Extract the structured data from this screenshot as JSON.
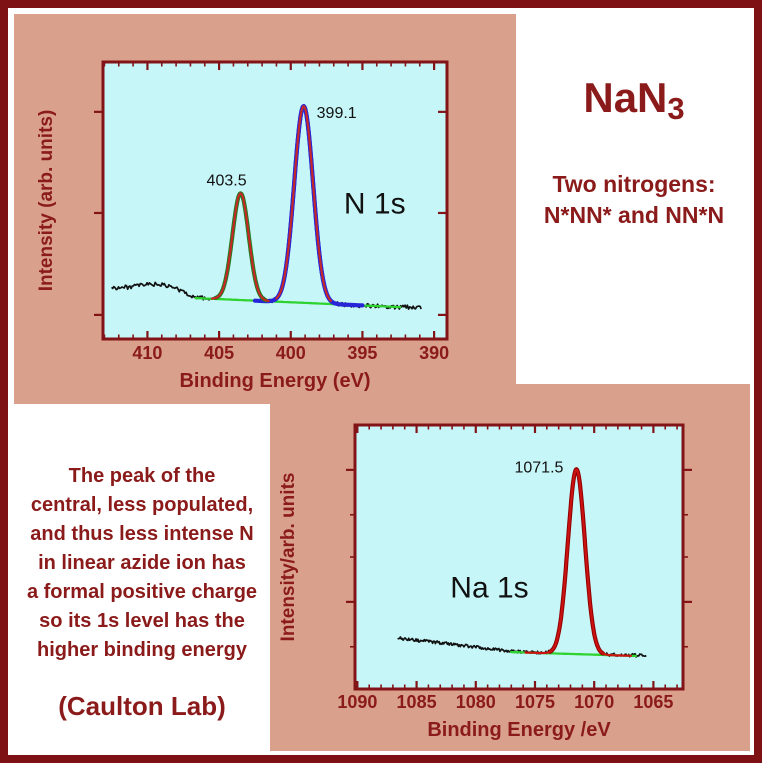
{
  "palette": {
    "frame_maroon": "#7d1114",
    "text_maroon": "#8b1a1a",
    "panel_salmon": "#d9a18c",
    "plot_cyan": "#c7f6f8",
    "axis_maroon": "#821418",
    "baseline_green": "#2fd32f",
    "data_black": "#111111"
  },
  "compound": {
    "title_main": "NaN",
    "title_sub": "3",
    "line1": "Two nitrogens:",
    "line2": "N*NN* and NN*N"
  },
  "explanation": {
    "lines": [
      "The peak of the",
      "central, less populated,",
      "and thus less intense N",
      "in linear azide ion has",
      "a formal positive charge",
      "so its 1s level has the",
      "higher binding energy"
    ],
    "credit": "(Caulton Lab)"
  },
  "chart_data": [
    {
      "id": "n1s",
      "type": "line",
      "annotation": "N 1s",
      "xlabel": "Binding Energy (eV)",
      "ylabel": "Intensity (arb. units)",
      "x_axis": {
        "max_left": 413.1,
        "min_right": 389.1,
        "reversed": true,
        "major_ticks": [
          410,
          405,
          400,
          395,
          390
        ],
        "minor_step": 1
      },
      "y_axis": {
        "label_only": true,
        "units": "arbitrary"
      },
      "peaks": [
        {
          "center": 403.5,
          "label": "403.5",
          "height_frac": 0.385,
          "sigma_ev": 0.57,
          "outline_color": "#1f7d1f",
          "fit_range": [
            405.5,
            401.55
          ]
        },
        {
          "center": 399.1,
          "label": "399.1",
          "height_frac": 0.71,
          "sigma_ev": 0.66,
          "outline_color": "#2626d8",
          "fit_range": [
            401.0,
            397.2
          ]
        }
      ],
      "fit_color": "#c62828",
      "envelope": {
        "color": "#2626d8",
        "from": 402.5,
        "to": 395.0,
        "peak_index": 1
      },
      "baseline": {
        "color": "#2fd32f",
        "from": 406.7,
        "to": 392.3,
        "level_start": 0.148,
        "level_end": 0.115
      },
      "data_trace": {
        "color": "#111111",
        "from": 412.5,
        "to": 390.9,
        "left_level": 0.185,
        "mode": "step",
        "step_center": 407.4,
        "step_width": 0.38,
        "hump": {
          "center": 409.6,
          "height": 0.013,
          "sigma": 0.95
        },
        "noise": 0.0075
      }
    },
    {
      "id": "na1s",
      "type": "line",
      "annotation": "Na 1s",
      "xlabel": "Binding Energy /eV",
      "ylabel": "Intensity/arb. units",
      "x_axis": {
        "max_left": 1090.2,
        "min_right": 1062.5,
        "reversed": true,
        "major_ticks": [
          1090,
          1085,
          1080,
          1075,
          1070,
          1065
        ],
        "minor_step": 1
      },
      "y_axis": {
        "label_only": true,
        "units": "arbitrary"
      },
      "peaks": [
        {
          "center": 1071.5,
          "label": "1071.5",
          "height_frac": 0.7,
          "sigma_ev": 0.72,
          "outline_color": "#8f0000",
          "fit_range": [
            1075.8,
            1066.9
          ]
        }
      ],
      "fit_color": "#cc1111",
      "envelope": null,
      "baseline": {
        "color": "#2fd32f",
        "from": 1077.1,
        "to": 1066.4,
        "level_start": 0.14,
        "level_end": 0.125
      },
      "data_trace": {
        "color": "#111111",
        "from": 1086.6,
        "to": 1065.6,
        "left_level": 0.193,
        "mode": "slope",
        "meet": 1076.8,
        "noise": 0.006
      }
    }
  ]
}
